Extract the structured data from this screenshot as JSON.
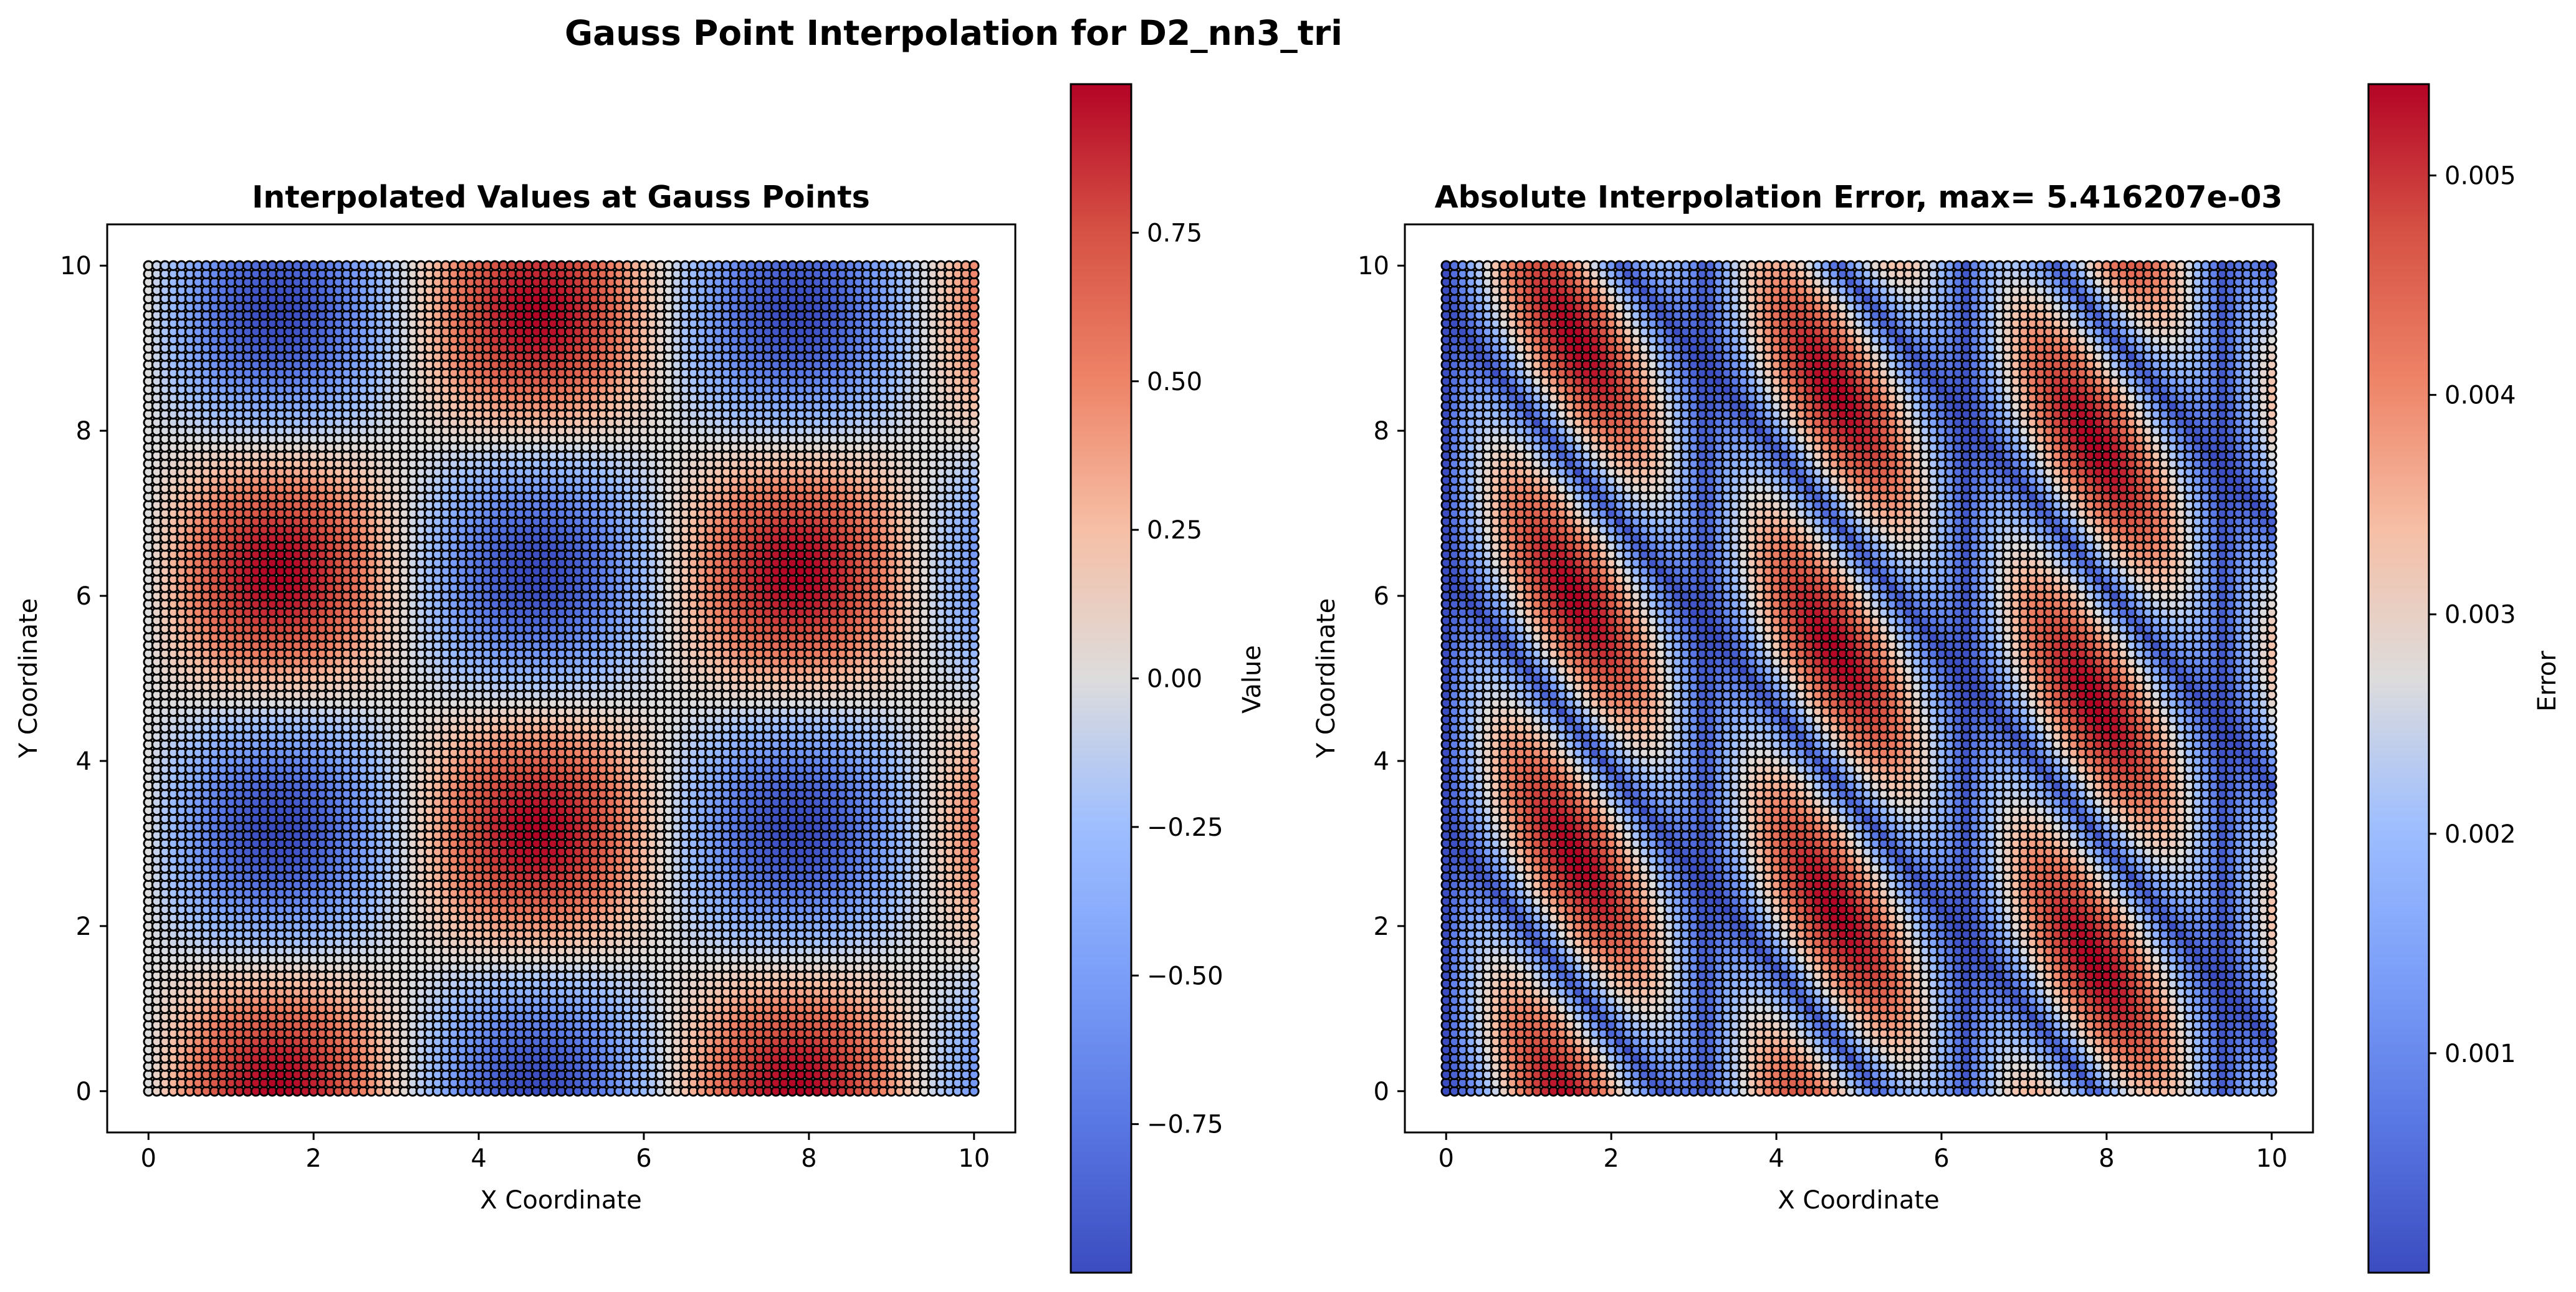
{
  "figure_title": "Gauss Point Interpolation for D2_nn3_tri",
  "chart_data": [
    {
      "type": "scatter",
      "title": "Interpolated Values at Gauss Points",
      "xlabel": "X Coordinate",
      "ylabel": "Y Coordinate",
      "xlim": [
        -0.5,
        10.5
      ],
      "ylim": [
        -0.5,
        10.5
      ],
      "xticks": [
        0,
        2,
        4,
        6,
        8,
        10
      ],
      "yticks": [
        0,
        2,
        4,
        6,
        8,
        10
      ],
      "grid": false,
      "colormap": "coolwarm",
      "field": "sin(x)*cos(y)",
      "marker_edge_color": "#000000",
      "colorbar": {
        "label": "Value",
        "min": -1,
        "max": 1,
        "ticks": [
          -0.75,
          -0.5,
          -0.25,
          0.0,
          0.25,
          0.5,
          0.75
        ],
        "tick_labels": [
          "−0.75",
          "−0.50",
          "−0.25",
          "0.00",
          "0.25",
          "0.50",
          "0.75"
        ]
      }
    },
    {
      "type": "scatter",
      "title": "Absolute Interpolation Error, max= 5.416207e-03",
      "xlabel": "X Coordinate",
      "ylabel": "Y Coordinate",
      "xlim": [
        -0.5,
        10.5
      ],
      "ylim": [
        -0.5,
        10.5
      ],
      "xticks": [
        0,
        2,
        4,
        6,
        8,
        10
      ],
      "yticks": [
        0,
        2,
        4,
        6,
        8,
        10
      ],
      "grid": false,
      "colormap": "coolwarm",
      "field": "abs interpolation error",
      "max_error": 0.005416207,
      "marker_edge_color": "#000000",
      "colorbar": {
        "label": "Error",
        "min": 0.0,
        "max": 0.005416207,
        "ticks": [
          0.001,
          0.002,
          0.003,
          0.004,
          0.005
        ],
        "tick_labels": [
          "0.001",
          "0.002",
          "0.003",
          "0.004",
          "0.005"
        ]
      }
    }
  ]
}
